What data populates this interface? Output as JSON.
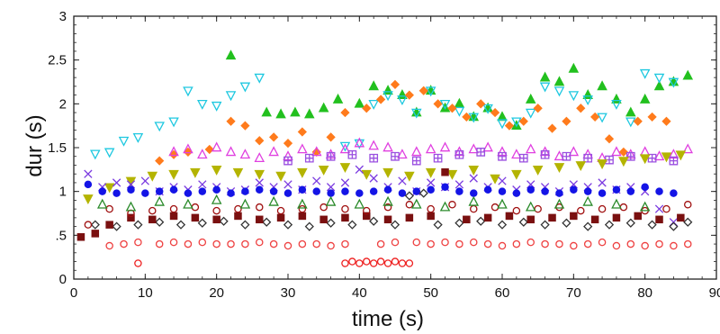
{
  "chart_data": {
    "type": "scatter",
    "title": "",
    "xlabel": "time (s)",
    "ylabel": "dur (s)",
    "xlim": [
      0,
      90
    ],
    "ylim": [
      0,
      3
    ],
    "x_ticks": [
      "0",
      "10",
      "20",
      "30",
      "40",
      "50",
      "60",
      "70",
      "80",
      "90"
    ],
    "y_ticks": [
      {
        "value": 0,
        "label": "0"
      },
      {
        "value": 0.5,
        "label": ".5"
      },
      {
        "value": 1,
        "label": "1"
      },
      {
        "value": 1.5,
        "label": "1.5"
      },
      {
        "value": 2,
        "label": "2"
      },
      {
        "value": 2.5,
        "label": "2.5"
      },
      {
        "value": 3,
        "label": "3"
      }
    ],
    "grid": false,
    "legend": "none",
    "series": [
      {
        "marker": "triangle-up",
        "color": "#22c01e",
        "fill": true,
        "x": [
          22,
          27,
          29,
          31,
          33,
          35,
          37,
          40,
          42,
          44,
          46,
          48,
          50,
          52,
          54,
          56,
          58,
          60,
          62,
          64,
          66,
          68,
          70,
          72,
          74,
          76,
          78,
          80,
          82,
          84,
          86
        ],
        "y": [
          2.55,
          1.9,
          1.88,
          1.9,
          1.88,
          1.95,
          2.05,
          2.0,
          2.2,
          2.15,
          2.1,
          1.9,
          2.15,
          1.95,
          2.0,
          1.85,
          1.95,
          1.85,
          1.75,
          2.05,
          2.3,
          2.25,
          2.4,
          2.1,
          2.2,
          2.05,
          1.9,
          2.05,
          2.2,
          2.25,
          2.32
        ]
      },
      {
        "marker": "triangle-down",
        "color": "#1ec8e0",
        "fill": false,
        "x": [
          3,
          5,
          7,
          9,
          12,
          14,
          16,
          18,
          20,
          22,
          24,
          26,
          38,
          40,
          42,
          44,
          46,
          48,
          50,
          52,
          54,
          56,
          58,
          60,
          62,
          64,
          66,
          68,
          70,
          72,
          74,
          76,
          78,
          80,
          82,
          84
        ],
        "y": [
          1.43,
          1.45,
          1.58,
          1.62,
          1.75,
          1.8,
          2.15,
          2.0,
          1.98,
          2.1,
          2.2,
          2.3,
          1.52,
          1.55,
          2.0,
          2.1,
          2.05,
          1.9,
          2.15,
          2.0,
          1.92,
          1.85,
          1.95,
          1.78,
          1.8,
          1.9,
          2.2,
          2.15,
          2.1,
          2.05,
          1.85,
          2.0,
          1.8,
          2.35,
          2.3,
          2.25
        ]
      },
      {
        "marker": "diamond",
        "color": "#ff7b1c",
        "fill": true,
        "x": [
          12,
          14,
          16,
          19,
          22,
          24,
          26,
          28,
          30,
          32,
          34,
          36,
          38,
          41,
          43,
          45,
          47,
          49,
          51,
          53,
          55,
          57,
          59,
          61,
          63,
          65,
          67,
          69,
          71,
          73,
          75,
          77,
          79,
          81,
          83
        ],
        "y": [
          1.35,
          1.42,
          1.45,
          1.48,
          1.8,
          1.75,
          1.58,
          1.62,
          1.55,
          1.68,
          1.45,
          1.62,
          1.9,
          1.95,
          2.05,
          2.22,
          2.1,
          2.15,
          2.0,
          1.95,
          1.85,
          2.0,
          1.9,
          1.75,
          1.8,
          1.95,
          1.72,
          1.8,
          1.95,
          1.85,
          1.6,
          1.45,
          1.8,
          1.85,
          1.8
        ]
      },
      {
        "marker": "triangle-up",
        "color": "#e040e0",
        "fill": false,
        "x": [
          14,
          16,
          18,
          20,
          22,
          24,
          26,
          28,
          30,
          32,
          34,
          36,
          38,
          40,
          42,
          44,
          46,
          48,
          50,
          52,
          54,
          56,
          58,
          60,
          62,
          64,
          66,
          68,
          70,
          72,
          74,
          76,
          78,
          80,
          82,
          84,
          86
        ],
        "y": [
          1.45,
          1.48,
          1.42,
          1.5,
          1.45,
          1.42,
          1.38,
          1.45,
          1.4,
          1.48,
          1.45,
          1.42,
          1.48,
          1.55,
          1.52,
          1.5,
          1.42,
          1.45,
          1.48,
          1.5,
          1.45,
          1.48,
          1.5,
          1.45,
          1.42,
          1.48,
          1.45,
          1.4,
          1.45,
          1.42,
          1.38,
          1.45,
          1.42,
          1.45,
          1.4,
          1.42,
          1.48
        ]
      },
      {
        "marker": "square-plus",
        "color": "#9a4fe0",
        "fill": false,
        "x": [
          30,
          33,
          36,
          39,
          42,
          45,
          48,
          51,
          54,
          57,
          60,
          63,
          66,
          69,
          72,
          75,
          78,
          81,
          84
        ],
        "y": [
          1.35,
          1.38,
          1.4,
          1.42,
          1.38,
          1.4,
          1.35,
          1.38,
          1.42,
          1.45,
          1.4,
          1.38,
          1.42,
          1.4,
          1.38,
          1.36,
          1.4,
          1.38,
          1.35
        ]
      },
      {
        "marker": "triangle-down",
        "color": "#b4b400",
        "fill": true,
        "x": [
          2,
          5,
          8,
          11,
          14,
          17,
          20,
          23,
          26,
          29,
          32,
          35,
          38,
          41,
          44,
          47,
          50,
          53,
          56,
          59,
          62,
          65,
          68,
          71,
          74,
          77,
          80,
          83,
          85
        ],
        "y": [
          0.92,
          1.05,
          1.12,
          1.18,
          1.2,
          1.22,
          1.25,
          1.22,
          1.2,
          1.18,
          1.22,
          1.25,
          1.28,
          1.2,
          1.22,
          1.18,
          1.22,
          1.2,
          1.25,
          1.15,
          1.2,
          1.25,
          1.28,
          1.3,
          1.32,
          1.35,
          1.38,
          1.4,
          1.42
        ]
      },
      {
        "marker": "x",
        "color": "#7b3be0",
        "fill": false,
        "x": [
          2,
          4,
          6,
          8,
          10,
          12,
          14,
          16,
          18,
          20,
          22,
          24,
          26,
          28,
          30,
          32,
          34,
          36,
          38,
          40,
          42,
          44,
          46,
          48,
          50,
          52,
          54,
          56,
          58,
          60,
          62,
          64,
          66,
          68,
          70,
          72,
          74,
          76,
          78,
          80,
          82,
          84
        ],
        "y": [
          1.2,
          1.05,
          1.1,
          1.08,
          1.12,
          1.0,
          1.05,
          1.02,
          1.08,
          1.05,
          1.0,
          1.02,
          1.1,
          1.05,
          1.08,
          1.02,
          1.12,
          1.05,
          1.1,
          1.25,
          1.15,
          1.05,
          1.12,
          1.0,
          1.1,
          1.05,
          1.08,
          1.15,
          1.05,
          1.12,
          1.02,
          1.08,
          1.05,
          1.0,
          1.08,
          1.05,
          1.1,
          1.02,
          1.05,
          1.0,
          0.8,
          0.65
        ]
      },
      {
        "marker": "circle",
        "color": "#1414e6",
        "fill": true,
        "x": [
          2,
          4,
          6,
          8,
          10,
          12,
          14,
          16,
          18,
          20,
          22,
          24,
          26,
          28,
          30,
          32,
          34,
          36,
          38,
          40,
          42,
          44,
          46,
          48,
          50,
          52,
          54,
          56,
          58,
          60,
          62,
          64,
          66,
          68,
          70,
          72,
          74,
          76,
          78,
          80,
          82,
          84
        ],
        "y": [
          1.08,
          1.0,
          0.98,
          1.02,
          0.98,
          1.0,
          1.02,
          0.98,
          1.0,
          1.02,
          0.98,
          1.0,
          1.02,
          1.0,
          0.98,
          1.02,
          1.0,
          0.98,
          1.0,
          0.98,
          1.0,
          1.02,
          0.98,
          1.0,
          1.02,
          1.05,
          1.0,
          0.98,
          1.02,
          1.0,
          0.98,
          1.02,
          1.0,
          0.98,
          1.02,
          1.0,
          0.98,
          1.02,
          1.0,
          1.05,
          1.0,
          0.98
        ]
      },
      {
        "marker": "diamond",
        "color": "#333333",
        "fill": false,
        "x": [
          3,
          6,
          9,
          12,
          15,
          18,
          21,
          24,
          27,
          30,
          33,
          36,
          39,
          42,
          45,
          47,
          49,
          51,
          54,
          57,
          60,
          63,
          66,
          69,
          72,
          75,
          78,
          81,
          84,
          86
        ],
        "y": [
          0.62,
          0.6,
          0.62,
          0.65,
          0.62,
          0.64,
          0.66,
          0.62,
          0.65,
          0.62,
          0.6,
          0.64,
          0.62,
          0.66,
          0.62,
          0.95,
          0.98,
          0.62,
          0.64,
          0.66,
          0.62,
          0.65,
          0.62,
          0.64,
          0.6,
          0.62,
          0.64,
          0.62,
          0.6,
          0.65
        ]
      },
      {
        "marker": "square",
        "color": "#7a1010",
        "fill": true,
        "x": [
          1,
          3,
          5,
          8,
          11,
          14,
          17,
          20,
          23,
          26,
          29,
          32,
          35,
          38,
          41,
          44,
          47,
          50,
          52,
          55,
          58,
          61,
          64,
          67,
          70,
          73,
          76,
          79,
          82,
          85
        ],
        "y": [
          0.48,
          0.52,
          0.62,
          0.7,
          0.68,
          0.72,
          0.7,
          0.68,
          0.72,
          0.68,
          0.7,
          0.72,
          0.68,
          0.7,
          0.72,
          0.68,
          0.7,
          0.72,
          1.22,
          0.68,
          0.7,
          0.72,
          0.68,
          0.7,
          0.72,
          0.68,
          0.7,
          0.72,
          0.68,
          0.7
        ]
      },
      {
        "marker": "circle",
        "color": "#a01010",
        "fill": false,
        "x": [
          2,
          5,
          8,
          11,
          14,
          17,
          20,
          23,
          26,
          29,
          32,
          35,
          38,
          41,
          44,
          47,
          50,
          53,
          56,
          59,
          62,
          65,
          68,
          71,
          74,
          77,
          80,
          83,
          86
        ],
        "y": [
          0.62,
          0.8,
          0.75,
          0.78,
          0.8,
          0.82,
          0.78,
          0.8,
          0.82,
          0.78,
          0.8,
          0.82,
          0.8,
          0.78,
          0.82,
          0.85,
          0.8,
          0.85,
          0.8,
          0.82,
          0.78,
          0.8,
          0.82,
          0.78,
          0.8,
          0.82,
          0.78,
          0.8,
          0.85
        ]
      },
      {
        "marker": "triangle-up",
        "color": "#2a8a2a",
        "fill": false,
        "x": [
          4,
          8,
          12,
          16,
          20,
          24,
          28,
          32,
          36,
          40,
          44,
          48,
          52,
          56,
          60,
          64,
          68,
          72,
          76,
          80
        ],
        "y": [
          0.85,
          0.82,
          0.88,
          0.85,
          0.9,
          0.85,
          0.88,
          0.85,
          0.88,
          0.85,
          0.88,
          0.85,
          0.82,
          0.88,
          0.85,
          0.82,
          0.85,
          0.88,
          0.85,
          0.82
        ]
      },
      {
        "marker": "circle",
        "color": "#ee4040",
        "fill": false,
        "x": [
          5,
          7,
          9,
          12,
          14,
          16,
          18,
          20,
          22,
          24,
          26,
          28,
          30,
          32,
          34,
          36,
          38,
          43,
          45,
          48,
          50,
          52,
          54,
          56,
          58,
          60,
          62,
          64,
          66,
          68,
          70,
          72,
          74,
          76,
          78,
          80,
          82,
          84,
          86
        ],
        "y": [
          0.38,
          0.4,
          0.42,
          0.4,
          0.42,
          0.4,
          0.42,
          0.4,
          0.4,
          0.4,
          0.42,
          0.4,
          0.38,
          0.4,
          0.4,
          0.38,
          0.4,
          0.4,
          0.42,
          0.42,
          0.4,
          0.42,
          0.4,
          0.42,
          0.4,
          0.38,
          0.4,
          0.42,
          0.4,
          0.4,
          0.38,
          0.4,
          0.42,
          0.38,
          0.4,
          0.38,
          0.4,
          0.38,
          0.4
        ]
      },
      {
        "marker": "circle",
        "color": "#ee2020",
        "fill": false,
        "x": [
          9,
          38,
          39,
          40,
          41,
          42,
          43,
          44,
          45,
          46,
          47
        ],
        "y": [
          0.18,
          0.18,
          0.2,
          0.18,
          0.2,
          0.18,
          0.2,
          0.18,
          0.2,
          0.18,
          0.18
        ]
      }
    ]
  }
}
